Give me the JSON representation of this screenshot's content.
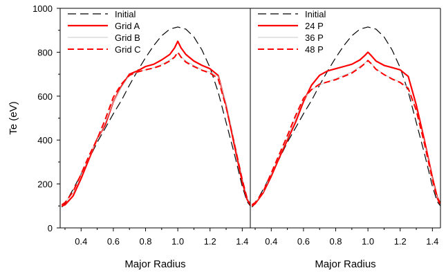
{
  "chart_data": [
    {
      "type": "line",
      "panel": "left",
      "xlabel": "Major Radius",
      "ylabel": "Te (eV)",
      "xlim": [
        0.27,
        1.45
      ],
      "ylim": [
        0,
        1000
      ],
      "xticks": [
        0.4,
        0.6,
        0.8,
        1.0,
        1.2,
        1.4
      ],
      "xtick_labels": [
        "0.4",
        "0.6",
        "0.8",
        "1.0",
        "1.2",
        "1.4"
      ],
      "yticks": [
        0,
        200,
        400,
        600,
        800,
        1000
      ],
      "ytick_labels": [
        "0",
        "200",
        "400",
        "600",
        "800",
        "1000"
      ],
      "grid": false,
      "legend_position": "top-left",
      "series": [
        {
          "name": "Initial",
          "color": "#000000",
          "style": "long-dash",
          "x": [
            0.28,
            0.3,
            0.35,
            0.4,
            0.45,
            0.5,
            0.55,
            0.6,
            0.65,
            0.7,
            0.75,
            0.8,
            0.85,
            0.9,
            0.95,
            1.0,
            1.05,
            1.1,
            1.15,
            1.2,
            1.25,
            1.3,
            1.35,
            1.4,
            1.43,
            1.45
          ],
          "y": [
            95,
            110,
            175,
            245,
            315,
            390,
            455,
            520,
            580,
            650,
            715,
            775,
            830,
            875,
            905,
            915,
            905,
            870,
            810,
            730,
            620,
            480,
            340,
            190,
            120,
            100
          ]
        },
        {
          "name": "Grid A",
          "color": "#ff0000",
          "style": "solid-thick",
          "x": [
            0.28,
            0.3,
            0.35,
            0.4,
            0.45,
            0.5,
            0.55,
            0.6,
            0.65,
            0.7,
            0.75,
            0.8,
            0.85,
            0.9,
            0.95,
            0.98,
            1.0,
            1.02,
            1.05,
            1.1,
            1.15,
            1.2,
            1.25,
            1.3,
            1.35,
            1.4,
            1.43,
            1.45
          ],
          "y": [
            100,
            105,
            145,
            225,
            315,
            405,
            470,
            575,
            645,
            700,
            715,
            735,
            745,
            765,
            790,
            820,
            850,
            820,
            790,
            760,
            740,
            725,
            695,
            560,
            380,
            210,
            130,
            105
          ]
        },
        {
          "name": "Grid B",
          "color": "#c8c8c8",
          "style": "solid-thin",
          "x": [
            0.28,
            0.3,
            0.35,
            0.4,
            0.45,
            0.5,
            0.55,
            0.6,
            0.65,
            0.7,
            0.75,
            0.8,
            0.85,
            0.9,
            0.95,
            0.98,
            1.0,
            1.02,
            1.05,
            1.1,
            1.15,
            1.2,
            1.25,
            1.3,
            1.35,
            1.4,
            1.43,
            1.45
          ],
          "y": [
            105,
            115,
            160,
            240,
            325,
            400,
            480,
            575,
            640,
            695,
            710,
            720,
            730,
            745,
            765,
            780,
            795,
            780,
            760,
            740,
            720,
            710,
            690,
            570,
            400,
            230,
            140,
            110
          ]
        },
        {
          "name": "Grid C",
          "color": "#ff0000",
          "style": "dash",
          "x": [
            0.28,
            0.3,
            0.35,
            0.4,
            0.45,
            0.5,
            0.55,
            0.6,
            0.65,
            0.7,
            0.75,
            0.8,
            0.85,
            0.9,
            0.95,
            0.98,
            1.0,
            1.02,
            1.05,
            1.1,
            1.15,
            1.2,
            1.25,
            1.3,
            1.35,
            1.4,
            1.43,
            1.45
          ],
          "y": [
            105,
            115,
            165,
            245,
            330,
            405,
            495,
            595,
            655,
            695,
            710,
            720,
            728,
            740,
            760,
            778,
            800,
            778,
            755,
            735,
            718,
            705,
            680,
            550,
            385,
            220,
            135,
            105
          ]
        }
      ]
    },
    {
      "type": "line",
      "panel": "right",
      "xlabel": "Major Radius",
      "ylabel": "",
      "xlim": [
        0.27,
        1.45
      ],
      "ylim": [
        0,
        1000
      ],
      "xticks": [
        0.4,
        0.6,
        0.8,
        1.0,
        1.2,
        1.4
      ],
      "xtick_labels": [
        "0.4",
        "0.6",
        "0.8",
        "1.0",
        "1.2",
        "1.4"
      ],
      "grid": false,
      "legend_position": "top-left",
      "series": [
        {
          "name": "Initial",
          "color": "#000000",
          "style": "long-dash",
          "x": [
            0.28,
            0.3,
            0.35,
            0.4,
            0.45,
            0.5,
            0.55,
            0.6,
            0.65,
            0.7,
            0.75,
            0.8,
            0.85,
            0.9,
            0.95,
            1.0,
            1.05,
            1.1,
            1.15,
            1.2,
            1.25,
            1.3,
            1.35,
            1.4,
            1.43,
            1.45
          ],
          "y": [
            95,
            110,
            175,
            245,
            315,
            390,
            455,
            520,
            580,
            650,
            715,
            775,
            830,
            875,
            905,
            915,
            905,
            870,
            810,
            730,
            620,
            480,
            340,
            190,
            120,
            100
          ]
        },
        {
          "name": "24 P",
          "color": "#ff0000",
          "style": "solid-thick",
          "x": [
            0.28,
            0.3,
            0.35,
            0.4,
            0.45,
            0.5,
            0.55,
            0.6,
            0.65,
            0.7,
            0.75,
            0.8,
            0.85,
            0.9,
            0.95,
            0.98,
            1.0,
            1.02,
            1.05,
            1.1,
            1.15,
            1.2,
            1.25,
            1.3,
            1.35,
            1.4,
            1.43,
            1.45
          ],
          "y": [
            100,
            110,
            160,
            235,
            320,
            400,
            480,
            575,
            650,
            695,
            715,
            725,
            735,
            745,
            765,
            785,
            800,
            785,
            760,
            740,
            730,
            720,
            690,
            560,
            400,
            230,
            140,
            110
          ]
        },
        {
          "name": "36 P",
          "color": "#c8c8c8",
          "style": "solid-thin",
          "x": [
            0.28,
            0.3,
            0.35,
            0.4,
            0.45,
            0.5,
            0.55,
            0.6,
            0.65,
            0.7,
            0.75,
            0.8,
            0.85,
            0.9,
            0.95,
            0.98,
            1.0,
            1.02,
            1.05,
            1.1,
            1.15,
            1.2,
            1.25,
            1.3,
            1.35,
            1.4,
            1.43,
            1.45
          ],
          "y": [
            105,
            115,
            165,
            245,
            330,
            410,
            500,
            585,
            630,
            650,
            665,
            680,
            695,
            710,
            735,
            750,
            765,
            750,
            725,
            700,
            680,
            665,
            640,
            540,
            390,
            225,
            138,
            108
          ]
        },
        {
          "name": "48 P",
          "color": "#ff0000",
          "style": "dash",
          "x": [
            0.28,
            0.3,
            0.35,
            0.4,
            0.45,
            0.5,
            0.55,
            0.6,
            0.65,
            0.7,
            0.75,
            0.8,
            0.85,
            0.9,
            0.95,
            0.98,
            1.0,
            1.02,
            1.05,
            1.1,
            1.15,
            1.2,
            1.25,
            1.3,
            1.35,
            1.4,
            1.43,
            1.45
          ],
          "y": [
            105,
            115,
            165,
            250,
            335,
            420,
            510,
            590,
            630,
            655,
            665,
            675,
            690,
            705,
            730,
            748,
            762,
            748,
            722,
            698,
            678,
            662,
            635,
            535,
            385,
            220,
            135,
            105
          ]
        }
      ]
    }
  ]
}
